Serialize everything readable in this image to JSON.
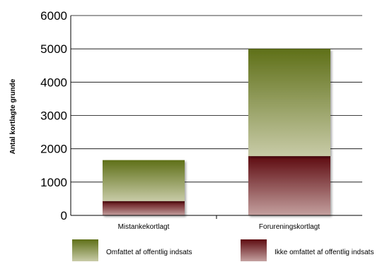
{
  "chart_data": {
    "type": "bar",
    "stacked": true,
    "categories": [
      "Mistankekortlagt",
      "Forureningskortlagt"
    ],
    "series": [
      {
        "name": "Ikke omfattet af offentlig indsats",
        "values": [
          430,
          1780
        ],
        "color_top": "#5e0b10",
        "color_bottom": "#c4a09f"
      },
      {
        "name": "Omfattet af offentlig indsats",
        "values": [
          1230,
          3220
        ],
        "color_top": "#5f7018",
        "color_bottom": "#c8cba7"
      }
    ],
    "ylabel": "Antal kortlagte grunde",
    "xlabel": "",
    "ylim": [
      0,
      6000
    ],
    "yticks": [
      0,
      1000,
      2000,
      3000,
      4000,
      5000,
      6000
    ],
    "grid": true,
    "legend_position": "bottom",
    "legend_order": [
      "Omfattet af offentlig indsats",
      "Ikke omfattet af offentlig indsats"
    ]
  }
}
